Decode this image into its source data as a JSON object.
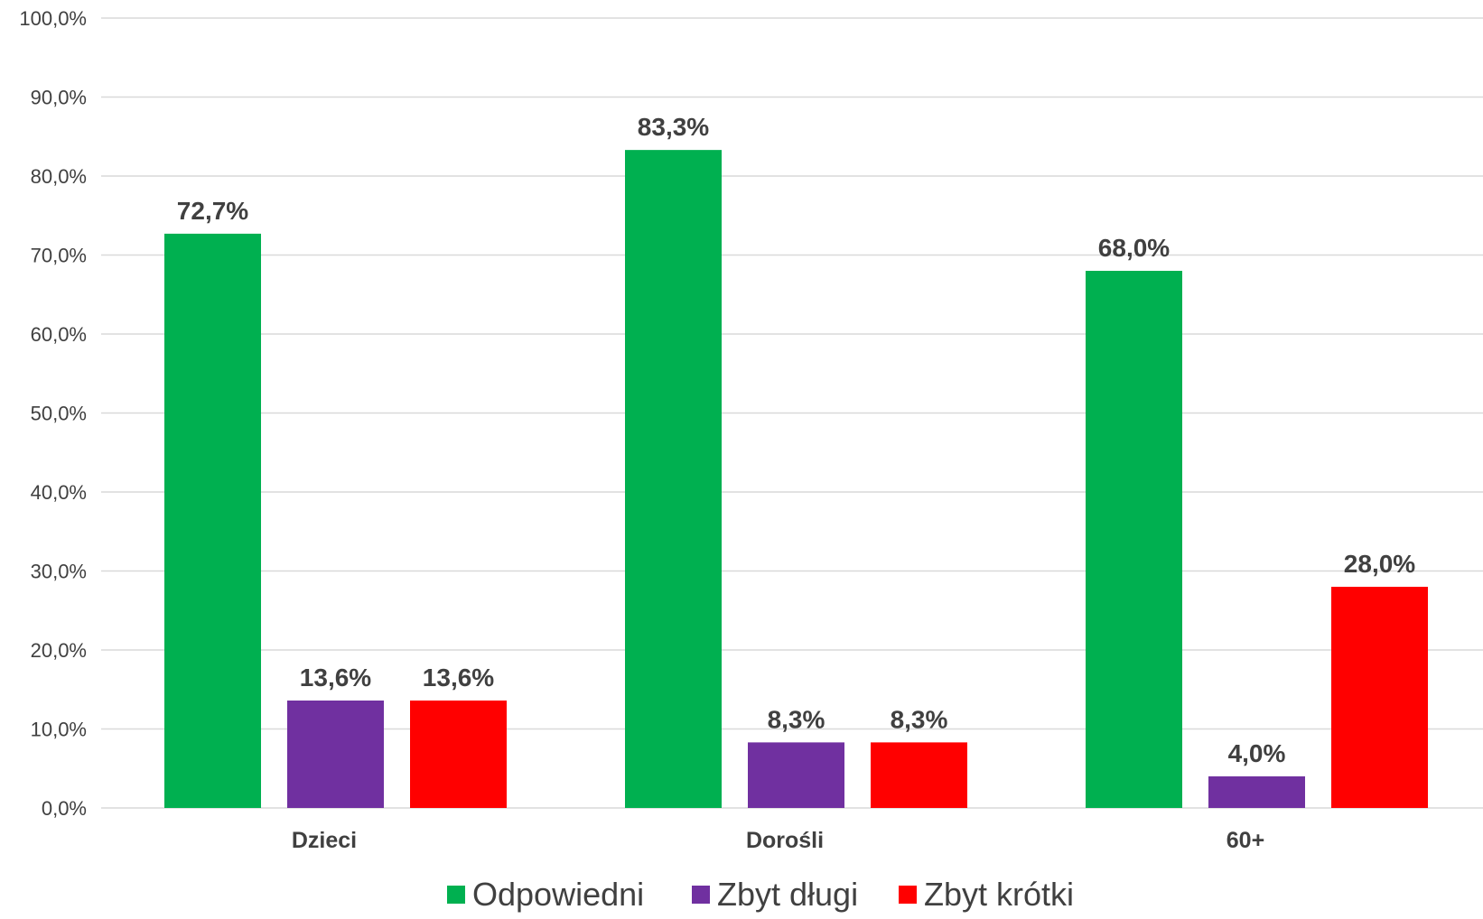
{
  "chart_data": {
    "type": "bar",
    "title": "",
    "xlabel": "",
    "ylabel": "",
    "categories": [
      "Dzieci",
      "Dorośli",
      "60+"
    ],
    "series": [
      {
        "name": "Odpowiedni",
        "color": "#00B050",
        "values": [
          72.7,
          83.3,
          68.0
        ],
        "labels": [
          "72,7%",
          "83,3%",
          "68,0%"
        ]
      },
      {
        "name": "Zbyt długi",
        "color": "#7030A0",
        "values": [
          13.6,
          8.3,
          4.0
        ],
        "labels": [
          "13,6%",
          "8,3%",
          "4,0%"
        ]
      },
      {
        "name": "Zbyt krótki",
        "color": "#FF0000",
        "values": [
          13.6,
          8.3,
          28.0
        ],
        "labels": [
          "13,6%",
          "8,3%",
          "28,0%"
        ]
      }
    ],
    "ylim": [
      0,
      100
    ],
    "yticks": [
      0,
      10,
      20,
      30,
      40,
      50,
      60,
      70,
      80,
      90,
      100
    ],
    "ytick_labels": [
      "0,0%",
      "10,0%",
      "20,0%",
      "30,0%",
      "40,0%",
      "50,0%",
      "60,0%",
      "70,0%",
      "80,0%",
      "90,0%",
      "100,0%"
    ],
    "grid": true,
    "gridline_color": "#D9D9D9",
    "text_color": "#404040",
    "legend_position": "bottom"
  }
}
